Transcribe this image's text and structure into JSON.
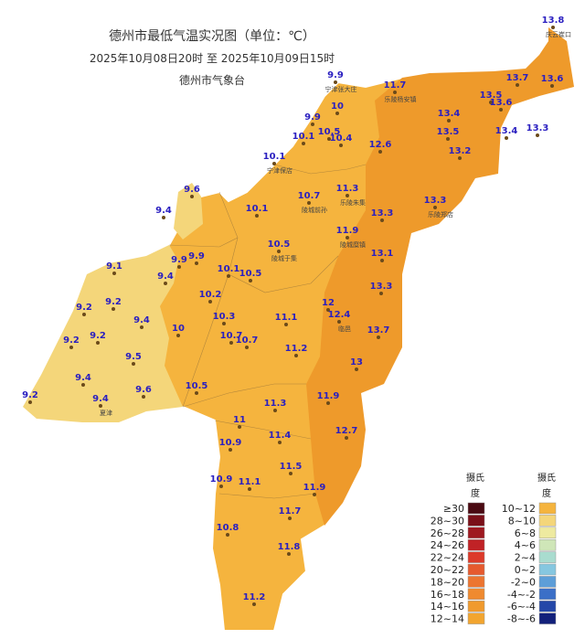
{
  "header": {
    "title": "德州市最低气温实况图（单位：℃）",
    "time_range": "2025年10月08日20时  至  2025年10月09日15时",
    "agency": "德州市气象台"
  },
  "stations": [
    {
      "value": 13.8,
      "name": "庆云崔口"
    },
    {
      "value": 9.9,
      "name": "宁津张大庄"
    },
    {
      "value": 11.7,
      "name": "乐陵杨安镇"
    },
    {
      "value": 13.7
    },
    {
      "value": 13.6
    },
    {
      "value": 13.5
    },
    {
      "value": 13.6
    },
    {
      "value": 13.4
    },
    {
      "value": 10
    },
    {
      "value": 9.9
    },
    {
      "value": 10.5
    },
    {
      "value": 10.1
    },
    {
      "value": 10.4
    },
    {
      "value": 13.5
    },
    {
      "value": 13.4
    },
    {
      "value": 13.3
    },
    {
      "value": 12.6
    },
    {
      "value": 13.2
    },
    {
      "value": 10.1,
      "name": "宁津保店"
    },
    {
      "value": 9.6
    },
    {
      "value": 10.7,
      "name": "陵城前孙"
    },
    {
      "value": 11.3,
      "name": "乐陵朱集"
    },
    {
      "value": 13.3,
      "name": "乐陵郑店"
    },
    {
      "value": 9.4
    },
    {
      "value": 10.1
    },
    {
      "value": 13.3
    },
    {
      "value": 11.9,
      "name": "陵城糜镇"
    },
    {
      "value": 10.5,
      "name": "陵城于集"
    },
    {
      "value": 9.1
    },
    {
      "value": 9.9
    },
    {
      "value": 9.9
    },
    {
      "value": 13.1
    },
    {
      "value": 10.1
    },
    {
      "value": 10.5
    },
    {
      "value": 9.4
    },
    {
      "value": 9.2
    },
    {
      "value": 10.2
    },
    {
      "value": 13.3
    },
    {
      "value": 12
    },
    {
      "value": 9.2
    },
    {
      "value": 12.4,
      "name": "临邑"
    },
    {
      "value": 10.3
    },
    {
      "value": 11.1
    },
    {
      "value": 9.4
    },
    {
      "value": 10
    },
    {
      "value": 10.7
    },
    {
      "value": 10.7
    },
    {
      "value": 9.2
    },
    {
      "value": 9.2
    },
    {
      "value": 13.7
    },
    {
      "value": 11.2
    },
    {
      "value": 9.5
    },
    {
      "value": 13
    },
    {
      "value": 9.4
    },
    {
      "value": 9.6
    },
    {
      "value": 9.2
    },
    {
      "value": 9.4,
      "name": "夏津"
    },
    {
      "value": 10.5
    },
    {
      "value": 11.9
    },
    {
      "value": 11.3
    },
    {
      "value": 11
    },
    {
      "value": 12.7
    },
    {
      "value": 11.4
    },
    {
      "value": 10.9
    },
    {
      "value": 11.5
    },
    {
      "value": 10.9
    },
    {
      "value": 11.1
    },
    {
      "value": 11.9
    },
    {
      "value": 11.7
    },
    {
      "value": 10.8
    },
    {
      "value": 11.8
    },
    {
      "value": 11.2
    }
  ],
  "legend": {
    "columns": [
      {
        "header": "摄氏",
        "header2": "度",
        "items": [
          {
            "label": "≥30",
            "color": "#4a0a12"
          },
          {
            "label": "28~30",
            "color": "#7a0f18"
          },
          {
            "label": "26~28",
            "color": "#9e1820"
          },
          {
            "label": "24~26",
            "color": "#c02226"
          },
          {
            "label": "22~24",
            "color": "#dc3a2a"
          },
          {
            "label": "20~22",
            "color": "#e65a2e"
          },
          {
            "label": "18~20",
            "color": "#ec7530"
          },
          {
            "label": "16~18",
            "color": "#ef8a2f"
          },
          {
            "label": "14~16",
            "color": "#f09a2d"
          },
          {
            "label": "12~14",
            "color": "#f2a52f"
          }
        ]
      },
      {
        "header": "摄氏",
        "header2": "度",
        "items": [
          {
            "label": "10~12",
            "color": "#f5b43e"
          },
          {
            "label": "8~10",
            "color": "#f4d67a"
          },
          {
            "label": "6~8",
            "color": "#eeeaa0"
          },
          {
            "label": "4~6",
            "color": "#cfe6b8"
          },
          {
            "label": "2~4",
            "color": "#a9dccf"
          },
          {
            "label": "0~2",
            "color": "#86c7e0"
          },
          {
            "label": "-2~0",
            "color": "#5d9ed8"
          },
          {
            "label": "-4~-2",
            "color": "#3b6fc7"
          },
          {
            "label": "-6~-4",
            "color": "#2447a8"
          },
          {
            "label": "-8~-6",
            "color": "#12207a"
          }
        ]
      }
    ]
  }
}
